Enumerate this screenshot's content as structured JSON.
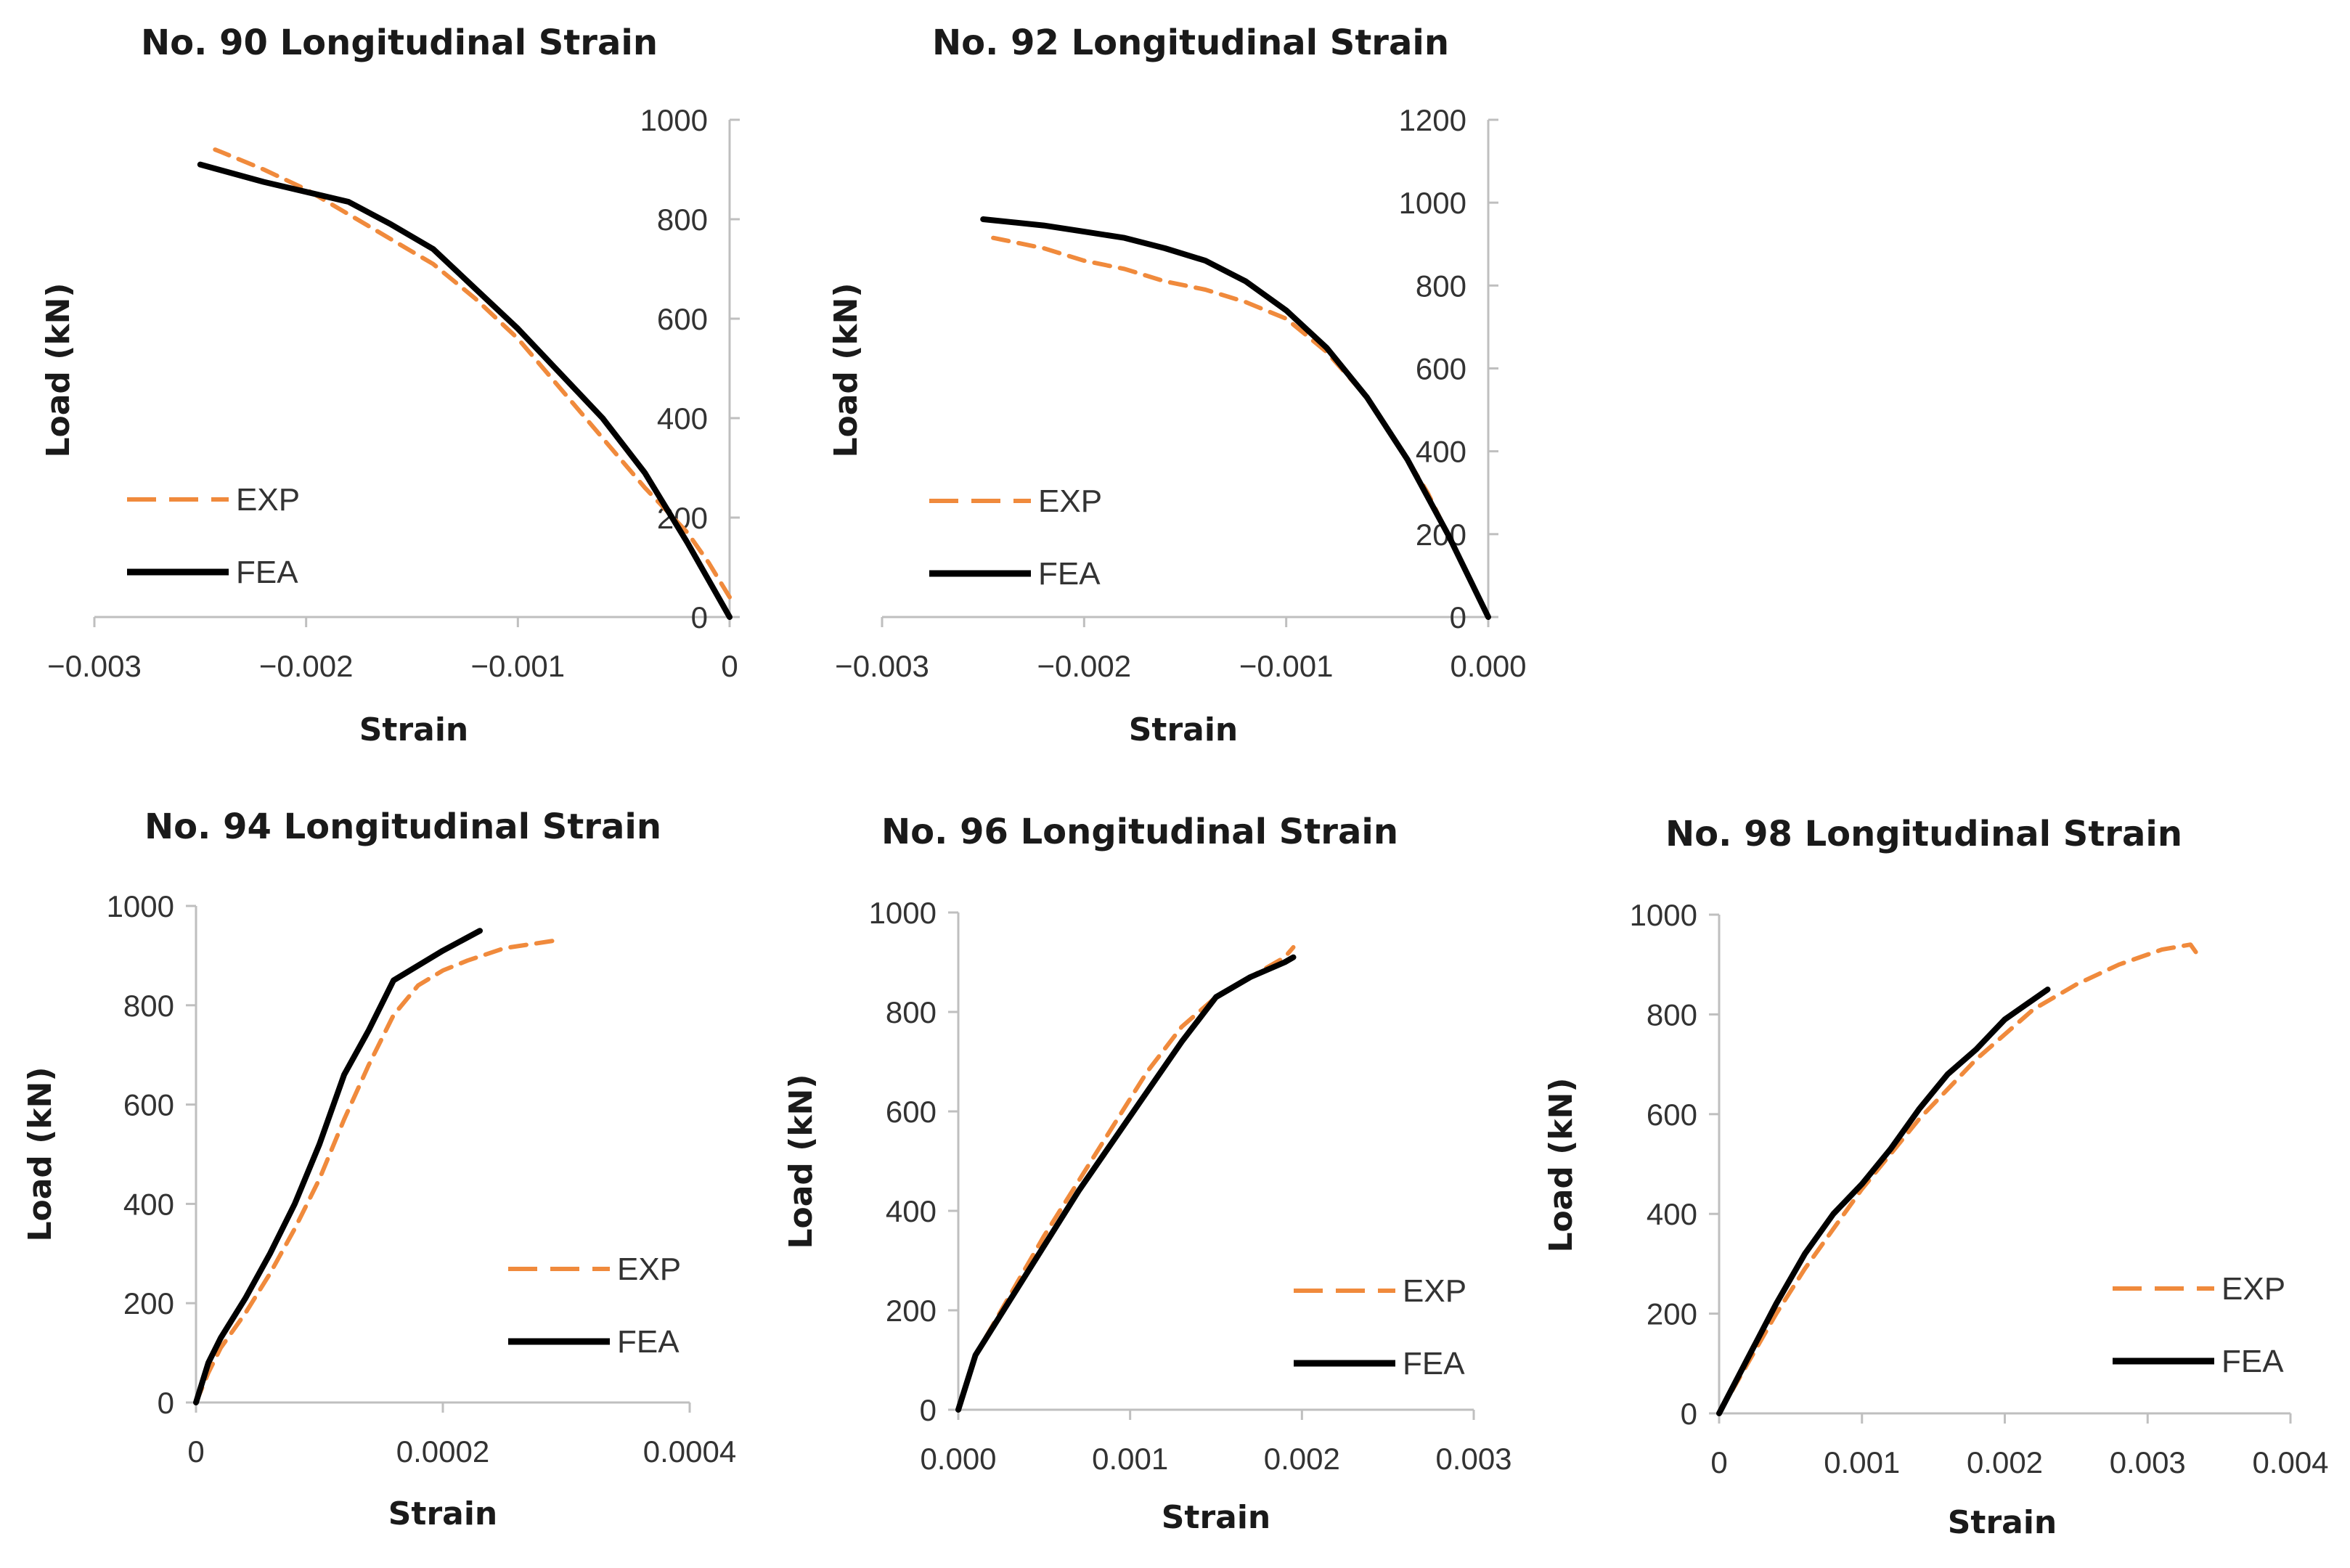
{
  "colors": {
    "EXP": "#f08a3c",
    "FEA": "#000000",
    "axis": "#bfbfbf",
    "text": "#333333"
  },
  "chart_data": [
    {
      "type": "line",
      "title": "No. 90 Longitudinal Strain",
      "xlabel": "Strain",
      "ylabel": "Load (kN)",
      "xlim": [
        -0.003,
        0
      ],
      "ylim": [
        0,
        1000
      ],
      "xticks": [
        -0.003,
        -0.002,
        -0.001,
        0
      ],
      "xtick_labels": [
        "−0.003",
        "−0.002",
        "−0.001",
        "0"
      ],
      "yticks": [
        0,
        200,
        400,
        600,
        800,
        1000
      ],
      "ytick_labels": [
        "0",
        "200",
        "400",
        "600",
        "800",
        "1000"
      ],
      "grid": false,
      "legend_position": "bottom-left",
      "series": [
        {
          "name": "EXP",
          "style": "dashed",
          "points": [
            [
              0,
              40
            ],
            [
              -0.0001,
              110
            ],
            [
              -0.0002,
              170
            ],
            [
              -0.0004,
              260
            ],
            [
              -0.0006,
              360
            ],
            [
              -0.0008,
              460
            ],
            [
              -0.001,
              560
            ],
            [
              -0.0012,
              640
            ],
            [
              -0.0014,
              710
            ],
            [
              -0.0016,
              760
            ],
            [
              -0.0018,
              810
            ],
            [
              -0.002,
              860
            ],
            [
              -0.0022,
              900
            ],
            [
              -0.0024,
              935
            ],
            [
              -0.00243,
              940
            ]
          ]
        },
        {
          "name": "FEA",
          "style": "solid",
          "points": [
            [
              0,
              0
            ],
            [
              -0.0002,
              150
            ],
            [
              -0.0004,
              290
            ],
            [
              -0.0006,
              400
            ],
            [
              -0.0008,
              490
            ],
            [
              -0.001,
              580
            ],
            [
              -0.0012,
              660
            ],
            [
              -0.0014,
              740
            ],
            [
              -0.0016,
              790
            ],
            [
              -0.0018,
              835
            ],
            [
              -0.002,
              855
            ],
            [
              -0.0022,
              875
            ],
            [
              -0.0025,
              910
            ]
          ]
        }
      ]
    },
    {
      "type": "line",
      "title": "No. 92 Longitudinal Strain",
      "xlabel": "Strain",
      "ylabel": "Load (kN)",
      "xlim": [
        -0.003,
        0
      ],
      "ylim": [
        0,
        1200
      ],
      "xticks": [
        -0.003,
        -0.002,
        -0.001,
        0
      ],
      "xtick_labels": [
        "−0.003",
        "−0.002",
        "−0.001",
        "0.000"
      ],
      "yticks": [
        0,
        200,
        400,
        600,
        800,
        1000,
        1200
      ],
      "ytick_labels": [
        "0",
        "200",
        "400",
        "600",
        "800",
        "1000",
        "1200"
      ],
      "grid": false,
      "legend_position": "bottom-left",
      "series": [
        {
          "name": "EXP",
          "style": "dashed",
          "points": [
            [
              0,
              0
            ],
            [
              -0.0001,
              100
            ],
            [
              -0.0002,
              200
            ],
            [
              -0.0003,
              300
            ],
            [
              -0.0004,
              380
            ],
            [
              -0.0006,
              530
            ],
            [
              -0.0008,
              640
            ],
            [
              -0.001,
              720
            ],
            [
              -0.0012,
              760
            ],
            [
              -0.0014,
              790
            ],
            [
              -0.0016,
              810
            ],
            [
              -0.0018,
              840
            ],
            [
              -0.002,
              860
            ],
            [
              -0.0022,
              890
            ],
            [
              -0.0024,
              910
            ],
            [
              -0.00245,
              915
            ]
          ]
        },
        {
          "name": "FEA",
          "style": "solid",
          "points": [
            [
              0,
              0
            ],
            [
              -0.0002,
              200
            ],
            [
              -0.0004,
              380
            ],
            [
              -0.0006,
              530
            ],
            [
              -0.0008,
              650
            ],
            [
              -0.001,
              740
            ],
            [
              -0.0012,
              810
            ],
            [
              -0.0014,
              860
            ],
            [
              -0.0016,
              890
            ],
            [
              -0.0018,
              915
            ],
            [
              -0.002,
              930
            ],
            [
              -0.0022,
              945
            ],
            [
              -0.0025,
              960
            ]
          ]
        }
      ]
    },
    {
      "type": "line",
      "title": "No. 94 Longitudinal Strain",
      "xlabel": "Strain",
      "ylabel": "Load (kN)",
      "xlim": [
        0,
        0.0004
      ],
      "ylim": [
        0,
        1000
      ],
      "xticks": [
        0,
        0.0002,
        0.0004
      ],
      "xtick_labels": [
        "0",
        "0.0002",
        "0.0004"
      ],
      "yticks": [
        0,
        200,
        400,
        600,
        800,
        1000
      ],
      "ytick_labels": [
        "0",
        "200",
        "400",
        "600",
        "800",
        "1000"
      ],
      "grid": false,
      "legend_position": "bottom-right",
      "series": [
        {
          "name": "EXP",
          "style": "dashed",
          "points": [
            [
              0,
              0
            ],
            [
              1e-05,
              60
            ],
            [
              2e-05,
              110
            ],
            [
              4e-05,
              180
            ],
            [
              6e-05,
              260
            ],
            [
              8e-05,
              350
            ],
            [
              0.0001,
              450
            ],
            [
              0.00012,
              570
            ],
            [
              0.00014,
              680
            ],
            [
              0.00016,
              780
            ],
            [
              0.00018,
              840
            ],
            [
              0.0002,
              870
            ],
            [
              0.00022,
              890
            ],
            [
              0.00025,
              915
            ],
            [
              0.00029,
              930
            ]
          ]
        },
        {
          "name": "FEA",
          "style": "solid",
          "points": [
            [
              0,
              0
            ],
            [
              1e-05,
              80
            ],
            [
              2e-05,
              130
            ],
            [
              4e-05,
              210
            ],
            [
              6e-05,
              300
            ],
            [
              8e-05,
              400
            ],
            [
              0.0001,
              520
            ],
            [
              0.00012,
              660
            ],
            [
              0.00014,
              750
            ],
            [
              0.00016,
              850
            ],
            [
              0.00018,
              880
            ],
            [
              0.0002,
              910
            ],
            [
              0.00023,
              950
            ]
          ]
        }
      ]
    },
    {
      "type": "line",
      "title": "No. 96 Longitudinal Strain",
      "xlabel": "Strain",
      "ylabel": "Load (kN)",
      "xlim": [
        0,
        0.003
      ],
      "ylim": [
        0,
        1000
      ],
      "xticks": [
        0,
        0.001,
        0.002,
        0.003
      ],
      "xtick_labels": [
        "0.000",
        "0.001",
        "0.002",
        "0.003"
      ],
      "yticks": [
        0,
        200,
        400,
        600,
        800,
        1000
      ],
      "ytick_labels": [
        "0",
        "200",
        "400",
        "600",
        "800",
        "1000"
      ],
      "grid": false,
      "legend_position": "bottom-right",
      "series": [
        {
          "name": "EXP",
          "style": "dashed",
          "points": [
            [
              0,
              0
            ],
            [
              0.0001,
              110
            ],
            [
              0.0003,
              230
            ],
            [
              0.0005,
              350
            ],
            [
              0.0007,
              460
            ],
            [
              0.0009,
              570
            ],
            [
              0.0011,
              680
            ],
            [
              0.0013,
              770
            ],
            [
              0.0015,
              830
            ],
            [
              0.0017,
              870
            ],
            [
              0.0019,
              910
            ],
            [
              0.00195,
              930
            ]
          ]
        },
        {
          "name": "FEA",
          "style": "solid",
          "points": [
            [
              0,
              0
            ],
            [
              0.0001,
              110
            ],
            [
              0.0003,
              220
            ],
            [
              0.0005,
              330
            ],
            [
              0.0007,
              440
            ],
            [
              0.0009,
              540
            ],
            [
              0.0011,
              640
            ],
            [
              0.0013,
              740
            ],
            [
              0.0015,
              830
            ],
            [
              0.0017,
              870
            ],
            [
              0.0019,
              900
            ],
            [
              0.00195,
              910
            ]
          ]
        }
      ]
    },
    {
      "type": "line",
      "title": "No. 98 Longitudinal Strain",
      "xlabel": "Strain",
      "ylabel": "Load (kN)",
      "xlim": [
        0,
        0.004
      ],
      "ylim": [
        0,
        1000
      ],
      "xticks": [
        0,
        0.001,
        0.002,
        0.003,
        0.004
      ],
      "xtick_labels": [
        "0",
        "0.001",
        "0.002",
        "0.003",
        "0.004"
      ],
      "yticks": [
        0,
        200,
        400,
        600,
        800,
        1000
      ],
      "ytick_labels": [
        "0",
        "200",
        "400",
        "600",
        "800",
        "1000"
      ],
      "grid": false,
      "legend_position": "bottom-right",
      "series": [
        {
          "name": "EXP",
          "style": "dashed",
          "points": [
            [
              0,
              0
            ],
            [
              0.0002,
              100
            ],
            [
              0.0004,
              200
            ],
            [
              0.0006,
              290
            ],
            [
              0.0008,
              370
            ],
            [
              0.001,
              450
            ],
            [
              0.0012,
              520
            ],
            [
              0.0014,
              590
            ],
            [
              0.0016,
              650
            ],
            [
              0.0018,
              710
            ],
            [
              0.002,
              760
            ],
            [
              0.0022,
              810
            ],
            [
              0.0025,
              860
            ],
            [
              0.0028,
              900
            ],
            [
              0.0031,
              930
            ],
            [
              0.0033,
              940
            ],
            [
              0.00335,
              920
            ]
          ]
        },
        {
          "name": "FEA",
          "style": "solid",
          "points": [
            [
              0,
              0
            ],
            [
              0.0002,
              110
            ],
            [
              0.0004,
              220
            ],
            [
              0.0006,
              320
            ],
            [
              0.0008,
              400
            ],
            [
              0.001,
              460
            ],
            [
              0.0012,
              530
            ],
            [
              0.0014,
              610
            ],
            [
              0.0016,
              680
            ],
            [
              0.0018,
              730
            ],
            [
              0.0019,
              760
            ],
            [
              0.002,
              790
            ],
            [
              0.0023,
              850
            ]
          ]
        }
      ]
    }
  ]
}
